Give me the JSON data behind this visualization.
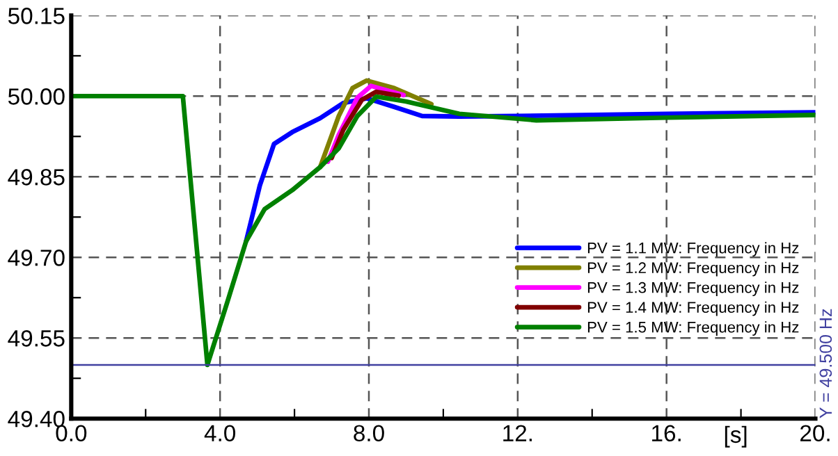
{
  "chart_data": {
    "type": "line",
    "xlabel": "[s]",
    "xlim": [
      0,
      20
    ],
    "ylim": [
      49.4,
      50.15
    ],
    "xticks": [
      {
        "value": 0,
        "label": "0.0"
      },
      {
        "value": 2,
        "label": null
      },
      {
        "value": 4,
        "label": "4.0"
      },
      {
        "value": 6,
        "label": null
      },
      {
        "value": 8,
        "label": "8.0"
      },
      {
        "value": 10,
        "label": null
      },
      {
        "value": 12,
        "label": "12."
      },
      {
        "value": 14,
        "label": null
      },
      {
        "value": 16,
        "label": "16."
      },
      {
        "value": 18,
        "label": null
      },
      {
        "value": 20,
        "label": "20."
      }
    ],
    "yticks": [
      {
        "value": 49.4,
        "label": "49.40"
      },
      {
        "value": 49.475,
        "label": null
      },
      {
        "value": 49.55,
        "label": "49.55"
      },
      {
        "value": 49.625,
        "label": null
      },
      {
        "value": 49.7,
        "label": "49.70"
      },
      {
        "value": 49.775,
        "label": null
      },
      {
        "value": 49.85,
        "label": "49.85"
      },
      {
        "value": 49.925,
        "label": null
      },
      {
        "value": 50.0,
        "label": "50.00"
      },
      {
        "value": 50.075,
        "label": null
      },
      {
        "value": 50.15,
        "label": "50.15"
      }
    ],
    "grid": true,
    "legend": "lower right",
    "line_style": "solid",
    "marker": "none",
    "ref_lines": [
      {
        "axis": "y",
        "value": 49.5,
        "label": "Y = 49.500 Hz",
        "color": "#4040a0"
      }
    ],
    "series": [
      {
        "name": "PV = 1.1 MW: Frequency in Hz",
        "color": "#0000ff",
        "x": [
          4.7,
          5.07,
          5.45,
          5.94,
          6.69,
          7.31,
          7.94,
          8.68,
          9.43,
          10.43,
          12,
          16,
          20
        ],
        "values": [
          49.73,
          49.834,
          49.911,
          49.933,
          49.959,
          49.987,
          49.996,
          49.98,
          49.963,
          49.962,
          49.963,
          49.967,
          49.97
        ]
      },
      {
        "name": "PV = 1.2 MW: Frequency in Hz",
        "color": "#808000",
        "x": [
          6.69,
          7.19,
          7.56,
          7.94,
          8.68,
          9.68
        ],
        "values": [
          49.868,
          49.963,
          50.015,
          50.029,
          50.015,
          49.985
        ]
      },
      {
        "name": "PV = 1.3 MW: Frequency in Hz",
        "color": "#ff00ff",
        "x": [
          6.9,
          7.19,
          7.69,
          8.06,
          8.93
        ],
        "values": [
          49.878,
          49.928,
          49.997,
          50.019,
          50.002
        ]
      },
      {
        "name": "PV = 1.4 MW: Frequency in Hz",
        "color": "#800000",
        "x": [
          7.0,
          7.31,
          7.81,
          8.19,
          8.8
        ],
        "values": [
          49.885,
          49.937,
          49.993,
          50.008,
          50.001
        ]
      },
      {
        "name": "PV = 1.5 MW: Frequency in Hz",
        "color": "#008000",
        "x": [
          0,
          3.0,
          3.66,
          4.2,
          4.7,
          5.2,
          5.94,
          6.69,
          7.19,
          7.69,
          8.2,
          9.0,
          10.43,
          12.5,
          16,
          20
        ],
        "values": [
          50.0,
          50.0,
          49.5,
          49.618,
          49.73,
          49.79,
          49.825,
          49.868,
          49.903,
          49.963,
          49.999,
          49.99,
          49.967,
          49.955,
          49.96,
          49.965
        ]
      }
    ]
  }
}
